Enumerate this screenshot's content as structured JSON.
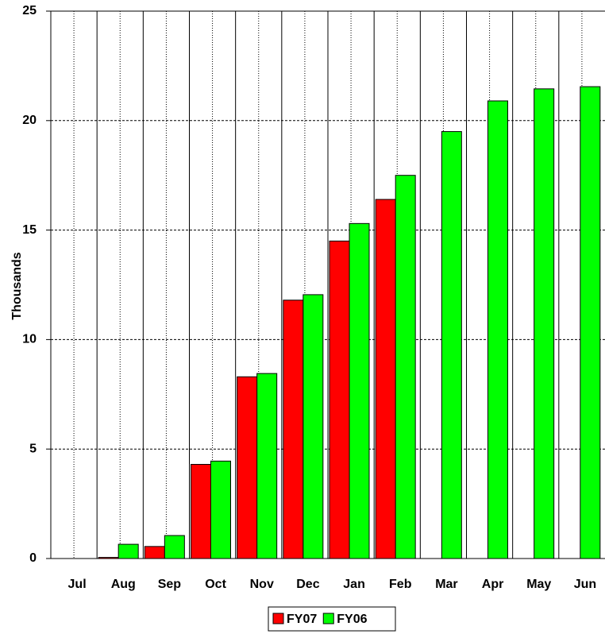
{
  "chart_data": {
    "type": "bar",
    "y_label": "Thousands",
    "categories": [
      "Jul",
      "Aug",
      "Sep",
      "Oct",
      "Nov",
      "Dec",
      "Jan",
      "Feb",
      "Mar",
      "Apr",
      "May",
      "Jun"
    ],
    "series": [
      {
        "name": "FY07",
        "color": "#ff0000",
        "values": [
          null,
          0.05,
          0.55,
          4.3,
          8.3,
          11.8,
          14.5,
          16.4,
          null,
          null,
          null,
          null
        ]
      },
      {
        "name": "FY06",
        "color": "#00ff00",
        "values": [
          null,
          0.65,
          1.05,
          4.45,
          8.45,
          12.05,
          15.3,
          17.5,
          19.5,
          20.9,
          21.45,
          21.55
        ]
      }
    ],
    "ylim": [
      0,
      25
    ],
    "yticks": [
      0,
      5,
      10,
      15,
      20,
      25
    ],
    "grid": true,
    "legend": "bottom"
  }
}
